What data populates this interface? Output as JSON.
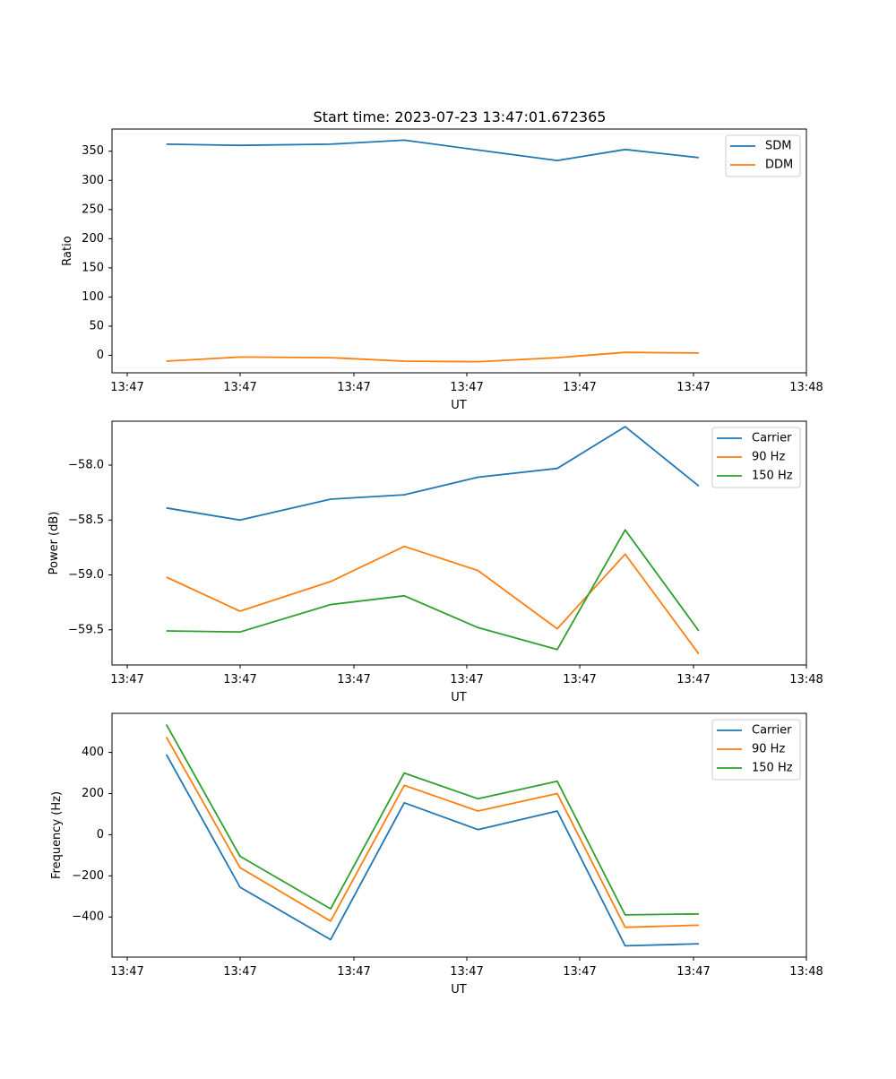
{
  "title": "Start time: 2023-07-23 13:47:01.672365",
  "chart_data": [
    {
      "type": "line",
      "title": "Start time: 2023-07-23 13:47:01.672365",
      "xlabel": "UT",
      "ylabel": "Ratio",
      "x_tick_labels": [
        "13:47",
        "13:47",
        "13:47",
        "13:47",
        "13:47",
        "13:47",
        "13:48"
      ],
      "x_tick_positions": [
        0,
        1,
        2,
        3,
        4,
        5,
        6
      ],
      "xlim": [
        -0.13,
        6.0
      ],
      "x": [
        0.35,
        1.0,
        1.8,
        2.45,
        3.1,
        3.8,
        4.4,
        5.05
      ],
      "ylim": [
        -30,
        388
      ],
      "y_ticks": [
        0,
        50,
        100,
        150,
        200,
        250,
        300,
        350
      ],
      "y_tick_labels": [
        "0",
        "50",
        "100",
        "150",
        "200",
        "250",
        "300",
        "350"
      ],
      "legend_position": "top-right",
      "series": [
        {
          "name": "SDM",
          "color": "#1f77b4",
          "values": [
            362,
            360,
            362,
            369,
            352,
            334,
            353,
            339
          ]
        },
        {
          "name": "DDM",
          "color": "#ff7f0e",
          "values": [
            -10,
            -3,
            -4,
            -10,
            -11,
            -4,
            5,
            4
          ]
        }
      ]
    },
    {
      "type": "line",
      "title": "",
      "xlabel": "UT",
      "ylabel": "Power (dB)",
      "x_tick_labels": [
        "13:47",
        "13:47",
        "13:47",
        "13:47",
        "13:47",
        "13:47",
        "13:48"
      ],
      "x_tick_positions": [
        0,
        1,
        2,
        3,
        4,
        5,
        6
      ],
      "xlim": [
        -0.13,
        6.0
      ],
      "x": [
        0.35,
        1.0,
        1.8,
        2.45,
        3.1,
        3.8,
        4.4,
        5.05
      ],
      "ylim": [
        -59.82,
        -57.6
      ],
      "y_ticks": [
        -59.5,
        -59.0,
        -58.5,
        -58.0
      ],
      "y_tick_labels": [
        "−59.5",
        "−59.0",
        "−58.5",
        "−58.0"
      ],
      "legend_position": "top-right",
      "series": [
        {
          "name": "Carrier",
          "color": "#1f77b4",
          "values": [
            -58.39,
            -58.5,
            -58.31,
            -58.27,
            -58.11,
            -58.03,
            -57.65,
            -58.19
          ]
        },
        {
          "name": "90 Hz",
          "color": "#ff7f0e",
          "values": [
            -59.02,
            -59.33,
            -59.06,
            -58.74,
            -58.96,
            -59.49,
            -58.81,
            -59.72
          ]
        },
        {
          "name": "150 Hz",
          "color": "#2ca02c",
          "values": [
            -59.51,
            -59.52,
            -59.27,
            -59.19,
            -59.48,
            -59.68,
            -58.59,
            -59.51
          ]
        }
      ]
    },
    {
      "type": "line",
      "title": "",
      "xlabel": "UT",
      "ylabel": "Frequency (Hz)",
      "x_tick_labels": [
        "13:47",
        "13:47",
        "13:47",
        "13:47",
        "13:47",
        "13:47",
        "13:48"
      ],
      "x_tick_positions": [
        0,
        1,
        2,
        3,
        4,
        5,
        6
      ],
      "xlim": [
        -0.13,
        6.0
      ],
      "x": [
        0.35,
        1.0,
        1.8,
        2.45,
        3.1,
        3.8,
        4.4,
        5.05
      ],
      "ylim": [
        -595,
        590
      ],
      "y_ticks": [
        -400,
        -200,
        0,
        200,
        400
      ],
      "y_tick_labels": [
        "−400",
        "−200",
        "0",
        "200",
        "400"
      ],
      "legend_position": "top-right",
      "series": [
        {
          "name": "Carrier",
          "color": "#1f77b4",
          "values": [
            390,
            -255,
            -510,
            155,
            25,
            115,
            -540,
            -530
          ]
        },
        {
          "name": "90 Hz",
          "color": "#ff7f0e",
          "values": [
            475,
            -160,
            -420,
            240,
            115,
            200,
            -450,
            -440
          ]
        },
        {
          "name": "150 Hz",
          "color": "#2ca02c",
          "values": [
            535,
            -105,
            -360,
            300,
            175,
            260,
            -390,
            -385
          ]
        }
      ]
    }
  ]
}
